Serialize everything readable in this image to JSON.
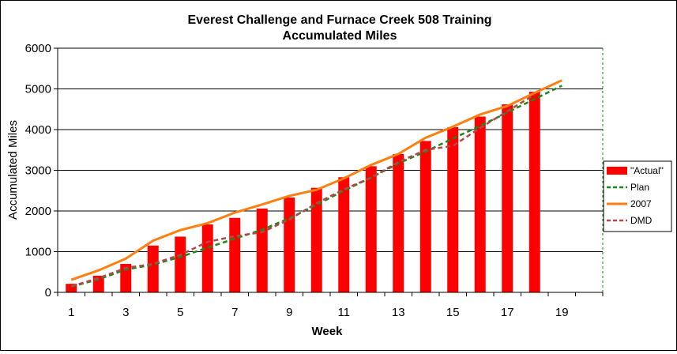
{
  "chart_data": {
    "type": "bar",
    "title": "Everest Challenge and Furnace Creek 508 Training",
    "subtitle": "Accumulated Miles",
    "xlabel": "Week",
    "ylabel": "Accumulated Miles",
    "x_ticks": [
      1,
      3,
      5,
      7,
      9,
      11,
      13,
      15,
      17,
      19
    ],
    "y_ticks": [
      0,
      1000,
      2000,
      3000,
      4000,
      5000,
      6000
    ],
    "xlim": [
      0.5,
      20.5
    ],
    "ylim": [
      0,
      6000
    ],
    "grid": "horizontal",
    "legend_position": "right",
    "colors": {
      "actual": "#ff0000",
      "plan": "#1a8a1a",
      "y2007": "#ff7f0f",
      "dmd": "#b04a4a",
      "grid": "#000000"
    },
    "series": [
      {
        "name": "\"Actual\"",
        "type": "bar",
        "x": [
          1,
          2,
          3,
          4,
          5,
          6,
          7,
          8,
          9,
          10,
          11,
          12,
          13,
          14,
          15,
          16,
          17,
          18
        ],
        "values": [
          210,
          410,
          700,
          1150,
          1370,
          1670,
          1830,
          2060,
          2330,
          2570,
          2830,
          3100,
          3400,
          3720,
          4060,
          4320,
          4620,
          4930
        ]
      },
      {
        "name": "Plan",
        "type": "line",
        "style": "dashed",
        "x": [
          1,
          2,
          3,
          4,
          5,
          6,
          7,
          8,
          9,
          10,
          11,
          12,
          13,
          14,
          15,
          16,
          17,
          18,
          19
        ],
        "values": [
          140,
          320,
          560,
          680,
          870,
          1100,
          1320,
          1540,
          1820,
          2150,
          2500,
          2820,
          3170,
          3460,
          3780,
          4090,
          4420,
          4750,
          5080
        ]
      },
      {
        "name": "2007",
        "type": "line",
        "style": "solid",
        "x": [
          1,
          2,
          3,
          4,
          5,
          6,
          7,
          8,
          9,
          10,
          11,
          12,
          13,
          14,
          15,
          16,
          17,
          18,
          19
        ],
        "values": [
          310,
          540,
          830,
          1270,
          1530,
          1700,
          1960,
          2160,
          2370,
          2520,
          2800,
          3130,
          3400,
          3800,
          4070,
          4370,
          4580,
          4900,
          5210
        ]
      },
      {
        "name": "DMD",
        "type": "line",
        "style": "dashed",
        "x": [
          1,
          2,
          3,
          4,
          5,
          6,
          7,
          8,
          9,
          10,
          11,
          12,
          13,
          14,
          15,
          16,
          17,
          18
        ],
        "values": [
          150,
          350,
          600,
          700,
          920,
          1240,
          1380,
          1480,
          1790,
          2190,
          2530,
          2820,
          3200,
          3500,
          3600,
          4040,
          4450,
          4860
        ]
      }
    ]
  }
}
